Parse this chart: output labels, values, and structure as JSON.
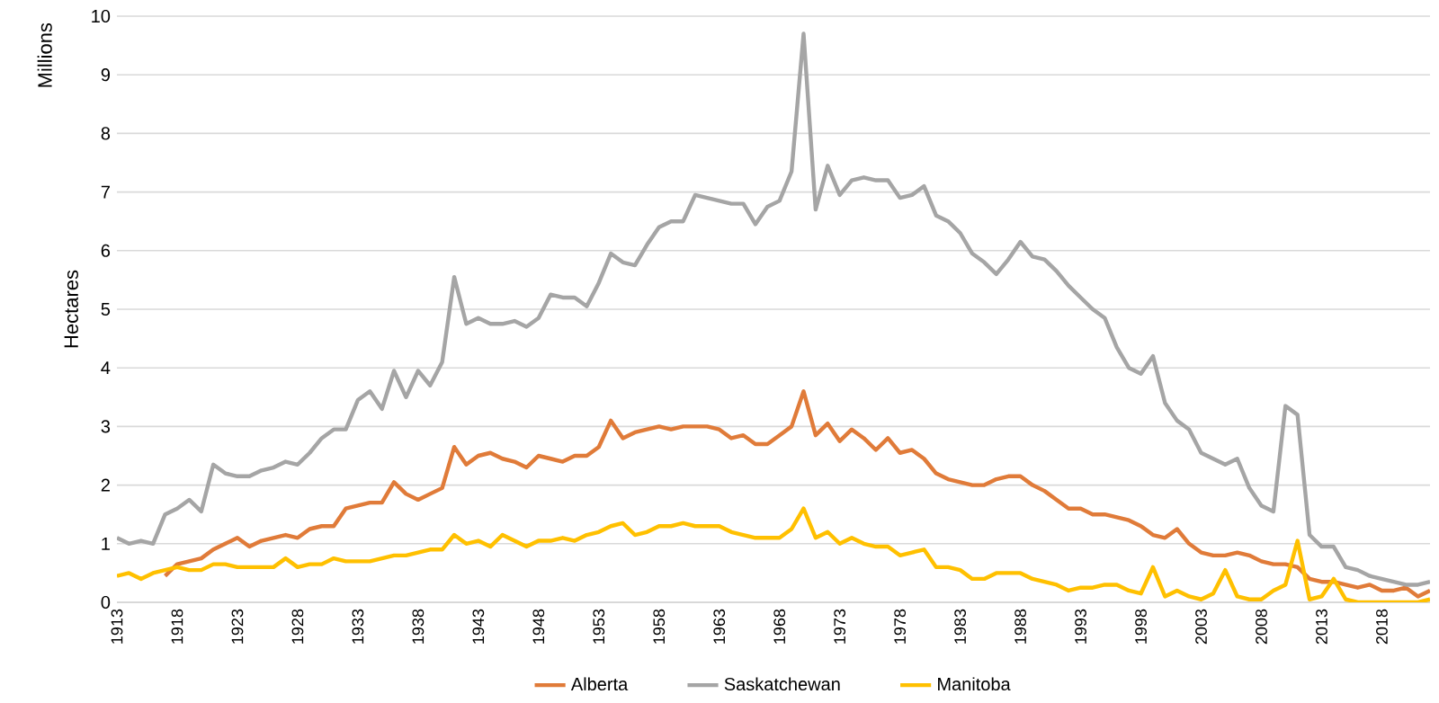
{
  "chart_data": {
    "type": "line",
    "ylabel": "Hectares",
    "annotations": [
      "Millions"
    ],
    "x": [
      1913,
      1914,
      1915,
      1916,
      1917,
      1918,
      1919,
      1920,
      1921,
      1922,
      1923,
      1924,
      1925,
      1926,
      1927,
      1928,
      1929,
      1930,
      1931,
      1932,
      1933,
      1934,
      1935,
      1936,
      1937,
      1938,
      1939,
      1940,
      1941,
      1942,
      1943,
      1944,
      1945,
      1946,
      1947,
      1948,
      1949,
      1950,
      1951,
      1952,
      1953,
      1954,
      1955,
      1956,
      1957,
      1958,
      1959,
      1960,
      1961,
      1962,
      1963,
      1964,
      1965,
      1966,
      1967,
      1968,
      1969,
      1970,
      1971,
      1972,
      1973,
      1974,
      1975,
      1976,
      1977,
      1978,
      1979,
      1980,
      1981,
      1982,
      1983,
      1984,
      1985,
      1986,
      1987,
      1988,
      1989,
      1990,
      1991,
      1992,
      1993,
      1994,
      1995,
      1996,
      1997,
      1998,
      1999,
      2000,
      2001,
      2002,
      2003,
      2004,
      2005,
      2006,
      2007,
      2008,
      2009,
      2010,
      2011,
      2012,
      2013,
      2014,
      2015,
      2016,
      2017,
      2018,
      2019,
      2020,
      2021,
      2022
    ],
    "series": [
      {
        "name": "Alberta",
        "color": "#e07b39",
        "values": [
          null,
          null,
          null,
          null,
          0.45,
          0.65,
          0.7,
          0.75,
          0.9,
          1.0,
          1.1,
          0.95,
          1.05,
          1.1,
          1.15,
          1.1,
          1.25,
          1.3,
          1.3,
          1.6,
          1.65,
          1.7,
          1.7,
          2.05,
          1.85,
          1.75,
          1.85,
          1.95,
          2.65,
          2.35,
          2.5,
          2.55,
          2.45,
          2.4,
          2.3,
          2.5,
          2.45,
          2.4,
          2.5,
          2.5,
          2.65,
          3.1,
          2.8,
          2.9,
          2.95,
          3.0,
          2.95,
          3.0,
          3.0,
          3.0,
          2.95,
          2.8,
          2.85,
          2.7,
          2.7,
          2.85,
          3.0,
          3.6,
          2.85,
          3.05,
          2.75,
          2.95,
          2.8,
          2.6,
          2.8,
          2.55,
          2.6,
          2.45,
          2.2,
          2.1,
          2.05,
          2.0,
          2.0,
          2.1,
          2.15,
          2.15,
          2.0,
          1.9,
          1.75,
          1.6,
          1.6,
          1.5,
          1.5,
          1.45,
          1.4,
          1.3,
          1.15,
          1.1,
          1.25,
          1.0,
          0.85,
          0.8,
          0.8,
          0.85,
          0.8,
          0.7,
          0.65,
          0.65,
          0.6,
          0.4,
          0.35,
          0.35,
          0.3,
          0.25,
          0.3,
          0.2,
          0.2,
          0.25,
          0.1,
          0.2
        ]
      },
      {
        "name": "Saskatchewan",
        "color": "#a5a5a5",
        "values": [
          1.1,
          1.0,
          1.05,
          1.0,
          1.5,
          1.6,
          1.75,
          1.55,
          2.35,
          2.2,
          2.15,
          2.15,
          2.25,
          2.3,
          2.4,
          2.35,
          2.55,
          2.8,
          2.95,
          2.95,
          3.45,
          3.6,
          3.3,
          3.95,
          3.5,
          3.95,
          3.7,
          4.1,
          5.55,
          4.75,
          4.85,
          4.75,
          4.75,
          4.8,
          4.7,
          4.85,
          5.25,
          5.2,
          5.2,
          5.05,
          5.45,
          5.95,
          5.8,
          5.75,
          6.1,
          6.4,
          6.5,
          6.5,
          6.95,
          6.9,
          6.85,
          6.8,
          6.8,
          6.45,
          6.75,
          6.85,
          7.35,
          9.7,
          6.7,
          7.45,
          6.95,
          7.2,
          7.25,
          7.2,
          7.2,
          6.9,
          6.95,
          7.1,
          6.6,
          6.5,
          6.3,
          5.95,
          5.8,
          5.6,
          5.85,
          6.15,
          5.9,
          5.85,
          5.65,
          5.4,
          5.2,
          5.0,
          4.85,
          4.35,
          4.0,
          3.9,
          4.2,
          3.4,
          3.1,
          2.95,
          2.55,
          2.45,
          2.35,
          2.45,
          1.95,
          1.65,
          1.55,
          3.35,
          3.2,
          1.15,
          0.95,
          0.95,
          0.6,
          0.55,
          0.45,
          0.4,
          0.35,
          0.3,
          0.3,
          0.35
        ]
      },
      {
        "name": "Manitoba",
        "color": "#ffc000",
        "values": [
          0.45,
          0.5,
          0.4,
          0.5,
          0.55,
          0.6,
          0.55,
          0.55,
          0.65,
          0.65,
          0.6,
          0.6,
          0.6,
          0.6,
          0.75,
          0.6,
          0.65,
          0.65,
          0.75,
          0.7,
          0.7,
          0.7,
          0.75,
          0.8,
          0.8,
          0.85,
          0.9,
          0.9,
          1.15,
          1.0,
          1.05,
          0.95,
          1.15,
          1.05,
          0.95,
          1.05,
          1.05,
          1.1,
          1.05,
          1.15,
          1.2,
          1.3,
          1.35,
          1.15,
          1.2,
          1.3,
          1.3,
          1.35,
          1.3,
          1.3,
          1.3,
          1.2,
          1.15,
          1.1,
          1.1,
          1.1,
          1.25,
          1.6,
          1.1,
          1.2,
          1.0,
          1.1,
          1.0,
          0.95,
          0.95,
          0.8,
          0.85,
          0.9,
          0.6,
          0.6,
          0.55,
          0.4,
          0.4,
          0.5,
          0.5,
          0.5,
          0.4,
          0.35,
          0.3,
          0.2,
          0.25,
          0.25,
          0.3,
          0.3,
          0.2,
          0.15,
          0.6,
          0.1,
          0.2,
          0.1,
          0.05,
          0.15,
          0.55,
          0.1,
          0.05,
          0.05,
          0.2,
          0.3,
          1.05,
          0.05,
          0.1,
          0.4,
          0.05,
          0.0,
          0.0,
          0.0,
          0.0,
          0.0,
          0.0,
          0.05
        ]
      }
    ],
    "xlim": [
      1913,
      2022
    ],
    "xticks": [
      1913,
      1918,
      1923,
      1928,
      1933,
      1938,
      1943,
      1948,
      1953,
      1958,
      1963,
      1968,
      1973,
      1978,
      1983,
      1988,
      1993,
      1998,
      2003,
      2008,
      2013,
      2018
    ],
    "ylim": [
      0,
      10
    ],
    "yticks": [
      0,
      1,
      2,
      3,
      4,
      5,
      6,
      7,
      8,
      9,
      10
    ],
    "grid": "y",
    "legend": "bottom",
    "marker": "none",
    "line_style": "solid"
  }
}
